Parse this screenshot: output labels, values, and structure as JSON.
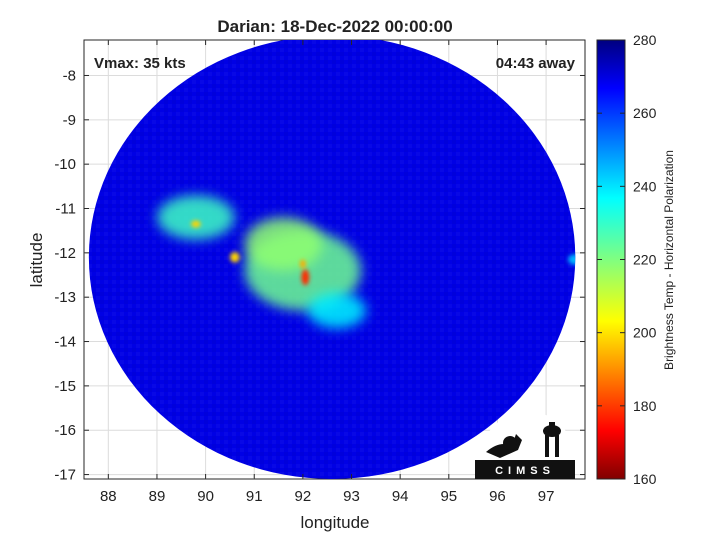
{
  "chart_data": {
    "type": "heatmap",
    "title": "Darian: 18-Dec-2022 00:00:00",
    "xlabel": "longitude",
    "ylabel": "latitude",
    "xlim": [
      87.5,
      97.8
    ],
    "ylim": [
      -17.1,
      -7.2
    ],
    "xticks": [
      88,
      89,
      90,
      91,
      92,
      93,
      94,
      95,
      96,
      97
    ],
    "yticks": [
      -8,
      -9,
      -10,
      -11,
      -12,
      -13,
      -14,
      -15,
      -16,
      -17
    ],
    "grid": true,
    "annotations": {
      "vmax": "Vmax: 35 kts",
      "time_away": "04:43 away"
    },
    "colorbar": {
      "label": "Brightness Temp - Horizontal Polarization",
      "range": [
        160,
        280
      ],
      "ticks": [
        280,
        260,
        240,
        220,
        200,
        180,
        160
      ]
    },
    "swath": {
      "center_lon": 92.6,
      "center_lat": -12.1,
      "radius_deg": 5.0,
      "background_value": 268
    },
    "features": [
      {
        "lon": 92.0,
        "lat": -12.4,
        "r_lon": 1.2,
        "r_lat": 0.9,
        "value": 222
      },
      {
        "lon": 91.6,
        "lat": -11.8,
        "r_lon": 0.8,
        "r_lat": 0.6,
        "value": 218
      },
      {
        "lon": 89.8,
        "lat": -11.2,
        "r_lon": 0.8,
        "r_lat": 0.5,
        "value": 228
      },
      {
        "lon": 92.7,
        "lat": -13.3,
        "r_lon": 0.6,
        "r_lat": 0.4,
        "value": 236
      },
      {
        "lon": 92.05,
        "lat": -12.55,
        "r_lon": 0.08,
        "r_lat": 0.18,
        "value": 180
      },
      {
        "lon": 92.0,
        "lat": -12.25,
        "r_lon": 0.06,
        "r_lat": 0.1,
        "value": 195
      },
      {
        "lon": 90.6,
        "lat": -12.1,
        "r_lon": 0.1,
        "r_lat": 0.12,
        "value": 200
      },
      {
        "lon": 89.8,
        "lat": -11.35,
        "r_lon": 0.1,
        "r_lat": 0.08,
        "value": 200
      },
      {
        "lon": 97.6,
        "lat": -12.15,
        "r_lon": 0.15,
        "r_lat": 0.12,
        "value": 244
      }
    ],
    "logo": "CIMSS"
  }
}
